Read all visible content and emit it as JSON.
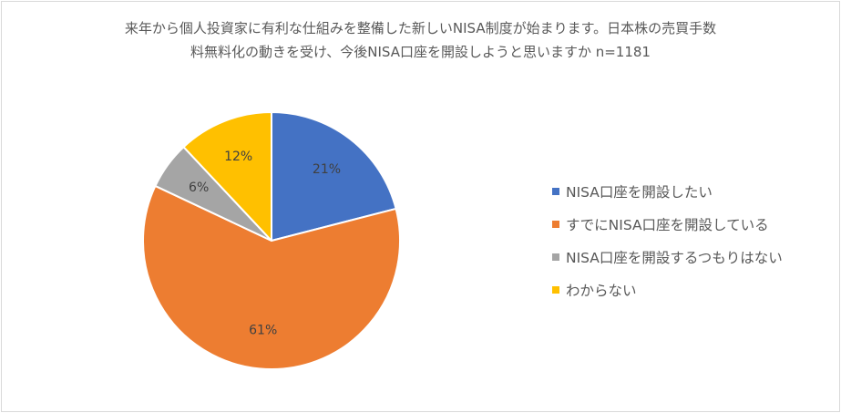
{
  "chart_data": {
    "type": "pie",
    "title_lines": [
      "来年から個人投資家に有利な仕組みを整備した新しいNISA制度が始まります。日本株の売買手数",
      "料無料化の動きを受け、今後NISA口座を開設しようと思いますか n=1181"
    ],
    "slices": [
      {
        "label": "NISA口座を開設したい",
        "value": 21,
        "display": "21%",
        "color": "#4472C4"
      },
      {
        "label": "すでにNISA口座を開設している",
        "value": 61,
        "display": "61%",
        "color": "#ED7D31"
      },
      {
        "label": "NISA口座を開設するつもりはない",
        "value": 6,
        "display": "6%",
        "color": "#A5A5A5"
      },
      {
        "label": "わからない",
        "value": 12,
        "display": "12%",
        "color": "#FFC000"
      }
    ],
    "legend_position": "right"
  }
}
